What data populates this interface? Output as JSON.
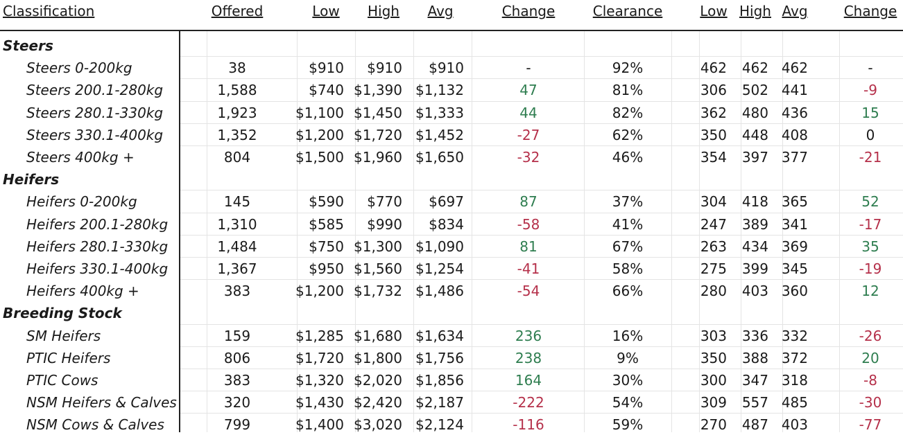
{
  "headers": {
    "classification": "Classification",
    "offered": "Offered",
    "low": "Low",
    "high": "High",
    "avg": "Avg",
    "change": "Change",
    "clearance": "Clearance",
    "low2": "Low",
    "high2": "High",
    "avg2": "Avg",
    "change2": "Change"
  },
  "colors": {
    "positive": "#2e7d4f",
    "negative": "#b5304a"
  },
  "sections": [
    {
      "title": "Steers",
      "rows": [
        {
          "label": "Steers 0-200kg",
          "offered": "38",
          "low": "$910",
          "high": "$910",
          "avg": "$910",
          "change": "-",
          "change_sign": "neu",
          "clearance": "92%",
          "low2": "462",
          "high2": "462",
          "avg2": "462",
          "change2": "-",
          "change2_sign": "neu"
        },
        {
          "label": "Steers 200.1-280kg",
          "offered": "1,588",
          "low": "$740",
          "high": "$1,390",
          "avg": "$1,132",
          "change": "47",
          "change_sign": "pos",
          "clearance": "81%",
          "low2": "306",
          "high2": "502",
          "avg2": "441",
          "change2": "-9",
          "change2_sign": "neg"
        },
        {
          "label": "Steers 280.1-330kg",
          "offered": "1,923",
          "low": "$1,100",
          "high": "$1,450",
          "avg": "$1,333",
          "change": "44",
          "change_sign": "pos",
          "clearance": "82%",
          "low2": "362",
          "high2": "480",
          "avg2": "436",
          "change2": "15",
          "change2_sign": "pos"
        },
        {
          "label": "Steers 330.1-400kg",
          "offered": "1,352",
          "low": "$1,200",
          "high": "$1,720",
          "avg": "$1,452",
          "change": "-27",
          "change_sign": "neg",
          "clearance": "62%",
          "low2": "350",
          "high2": "448",
          "avg2": "408",
          "change2": "0",
          "change2_sign": "neu"
        },
        {
          "label": "Steers 400kg +",
          "offered": "804",
          "low": "$1,500",
          "high": "$1,960",
          "avg": "$1,650",
          "change": "-32",
          "change_sign": "neg",
          "clearance": "46%",
          "low2": "354",
          "high2": "397",
          "avg2": "377",
          "change2": "-21",
          "change2_sign": "neg"
        }
      ]
    },
    {
      "title": "Heifers",
      "rows": [
        {
          "label": "Heifers 0-200kg",
          "offered": "145",
          "low": "$590",
          "high": "$770",
          "avg": "$697",
          "change": "87",
          "change_sign": "pos",
          "clearance": "37%",
          "low2": "304",
          "high2": "418",
          "avg2": "365",
          "change2": "52",
          "change2_sign": "pos"
        },
        {
          "label": "Heifers 200.1-280kg",
          "offered": "1,310",
          "low": "$585",
          "high": "$990",
          "avg": "$834",
          "change": "-58",
          "change_sign": "neg",
          "clearance": "41%",
          "low2": "247",
          "high2": "389",
          "avg2": "341",
          "change2": "-17",
          "change2_sign": "neg"
        },
        {
          "label": "Heifers 280.1-330kg",
          "offered": "1,484",
          "low": "$750",
          "high": "$1,300",
          "avg": "$1,090",
          "change": "81",
          "change_sign": "pos",
          "clearance": "67%",
          "low2": "263",
          "high2": "434",
          "avg2": "369",
          "change2": "35",
          "change2_sign": "pos"
        },
        {
          "label": "Heifers 330.1-400kg",
          "offered": "1,367",
          "low": "$950",
          "high": "$1,560",
          "avg": "$1,254",
          "change": "-41",
          "change_sign": "neg",
          "clearance": "58%",
          "low2": "275",
          "high2": "399",
          "avg2": "345",
          "change2": "-19",
          "change2_sign": "neg"
        },
        {
          "label": "Heifers 400kg +",
          "offered": "383",
          "low": "$1,200",
          "high": "$1,732",
          "avg": "$1,486",
          "change": "-54",
          "change_sign": "neg",
          "clearance": "66%",
          "low2": "280",
          "high2": "403",
          "avg2": "360",
          "change2": "12",
          "change2_sign": "pos"
        }
      ]
    },
    {
      "title": "Breeding Stock",
      "rows": [
        {
          "label": "SM Heifers",
          "offered": "159",
          "low": "$1,285",
          "high": "$1,680",
          "avg": "$1,634",
          "change": "236",
          "change_sign": "pos",
          "clearance": "16%",
          "low2": "303",
          "high2": "336",
          "avg2": "332",
          "change2": "-26",
          "change2_sign": "neg"
        },
        {
          "label": "PTIC Heifers",
          "offered": "806",
          "low": "$1,720",
          "high": "$1,800",
          "avg": "$1,756",
          "change": "238",
          "change_sign": "pos",
          "clearance": "9%",
          "low2": "350",
          "high2": "388",
          "avg2": "372",
          "change2": "20",
          "change2_sign": "pos"
        },
        {
          "label": "PTIC Cows",
          "offered": "383",
          "low": "$1,320",
          "high": "$2,020",
          "avg": "$1,856",
          "change": "164",
          "change_sign": "pos",
          "clearance": "30%",
          "low2": "300",
          "high2": "347",
          "avg2": "318",
          "change2": "-8",
          "change2_sign": "neg"
        },
        {
          "label": "NSM Heifers & Calves",
          "offered": "320",
          "low": "$1,430",
          "high": "$2,420",
          "avg": "$2,187",
          "change": "-222",
          "change_sign": "neg",
          "clearance": "54%",
          "low2": "309",
          "high2": "557",
          "avg2": "485",
          "change2": "-30",
          "change2_sign": "neg"
        },
        {
          "label": "NSM Cows & Calves",
          "offered": "799",
          "low": "$1,400",
          "high": "$3,020",
          "avg": "$2,124",
          "change": "-116",
          "change_sign": "neg",
          "clearance": "59%",
          "low2": "270",
          "high2": "487",
          "avg2": "403",
          "change2": "-77",
          "change2_sign": "neg"
        }
      ]
    }
  ]
}
